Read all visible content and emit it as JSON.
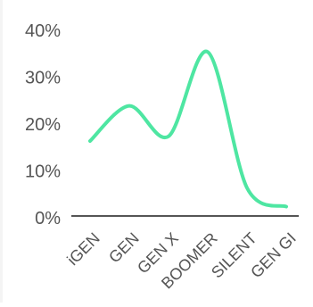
{
  "chart_data": {
    "type": "line",
    "title": "",
    "xlabel": "",
    "ylabel": "",
    "categories": [
      "iGEN",
      "GEN",
      "GEN X",
      "BOOMER",
      "SILENT",
      "GEN GI"
    ],
    "series": [
      {
        "values": [
          16,
          23.5,
          17,
          35,
          6,
          2
        ],
        "color": "#4ee6a2"
      }
    ],
    "y_ticks": [
      0,
      10,
      20,
      30,
      40
    ],
    "y_tick_labels": [
      "0%",
      "10%",
      "20%",
      "30%",
      "40%"
    ],
    "ylim": [
      0,
      40
    ],
    "grid": false,
    "legend": "none",
    "smooth": true
  }
}
